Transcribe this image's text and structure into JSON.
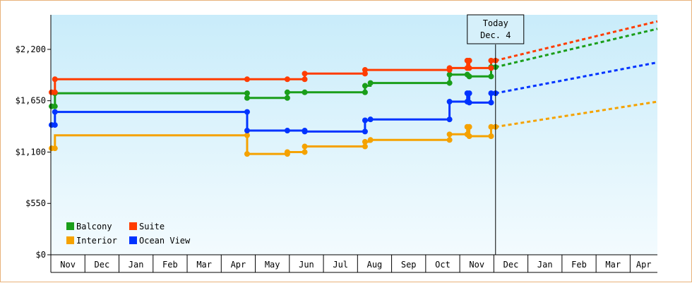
{
  "chart_data": {
    "type": "line",
    "title": "",
    "xlabel": "",
    "ylabel": "",
    "y_ticks": [
      "$0",
      "$550",
      "$1,100",
      "$1,650",
      "$2,200"
    ],
    "y_tick_values": [
      0,
      550,
      1100,
      1650,
      2200
    ],
    "ylim": [
      0,
      2570
    ],
    "x_months": [
      "Nov",
      "Dec",
      "Jan",
      "Feb",
      "Mar",
      "Apr",
      "May",
      "Jun",
      "Jul",
      "Aug",
      "Sep",
      "Oct",
      "Nov",
      "Dec",
      "Jan",
      "Feb",
      "Mar",
      "Apr"
    ],
    "xlim": [
      0,
      17.8
    ],
    "today": {
      "line1": "Today",
      "line2": "Dec. 4",
      "x": 13.05
    },
    "legend_position": "bottom-left",
    "grid": false,
    "series": [
      {
        "name": "Balcony",
        "color": "#1a9e1a",
        "points": [
          [
            0.02,
            1590
          ],
          [
            0.12,
            1590
          ],
          [
            0.12,
            1730
          ],
          [
            5.76,
            1730
          ],
          [
            5.76,
            1680
          ],
          [
            6.94,
            1680
          ],
          [
            6.94,
            1740
          ],
          [
            7.45,
            1740
          ],
          [
            9.22,
            1740
          ],
          [
            9.22,
            1810
          ],
          [
            9.38,
            1810
          ],
          [
            9.38,
            1840
          ],
          [
            11.7,
            1840
          ],
          [
            11.7,
            1930
          ],
          [
            12.22,
            1930
          ],
          [
            12.28,
            1930
          ],
          [
            12.28,
            1910
          ],
          [
            12.92,
            1910
          ],
          [
            12.92,
            2010
          ],
          [
            13.05,
            2010
          ]
        ],
        "markers": [
          [
            0.02,
            1590
          ],
          [
            0.12,
            1590
          ],
          [
            0.12,
            1730
          ],
          [
            5.76,
            1730
          ],
          [
            5.76,
            1680
          ],
          [
            6.94,
            1680
          ],
          [
            6.94,
            1740
          ],
          [
            7.45,
            1740
          ],
          [
            9.22,
            1740
          ],
          [
            9.22,
            1810
          ],
          [
            9.38,
            1840
          ],
          [
            11.7,
            1840
          ],
          [
            11.7,
            1930
          ],
          [
            12.22,
            1930
          ],
          [
            12.28,
            1910
          ],
          [
            12.92,
            1910
          ],
          [
            12.92,
            2010
          ],
          [
            13.05,
            2010
          ]
        ],
        "forecast": [
          [
            13.05,
            2010
          ],
          [
            17.8,
            2420
          ]
        ]
      },
      {
        "name": "Suite",
        "color": "#ff3c00",
        "points": [
          [
            0.02,
            1740
          ],
          [
            0.12,
            1740
          ],
          [
            0.12,
            1880
          ],
          [
            5.76,
            1880
          ],
          [
            6.94,
            1880
          ],
          [
            7.45,
            1880
          ],
          [
            7.45,
            1940
          ],
          [
            9.22,
            1940
          ],
          [
            9.22,
            1980
          ],
          [
            11.7,
            1980
          ],
          [
            11.7,
            2000
          ],
          [
            12.22,
            2000
          ],
          [
            12.22,
            2080
          ],
          [
            12.28,
            2080
          ],
          [
            12.28,
            2000
          ],
          [
            12.92,
            2000
          ],
          [
            12.92,
            2080
          ],
          [
            13.05,
            2080
          ]
        ],
        "markers": [
          [
            0.02,
            1740
          ],
          [
            0.12,
            1740
          ],
          [
            0.12,
            1880
          ],
          [
            5.76,
            1880
          ],
          [
            6.94,
            1880
          ],
          [
            7.45,
            1880
          ],
          [
            7.45,
            1940
          ],
          [
            9.22,
            1940
          ],
          [
            9.22,
            1980
          ],
          [
            11.7,
            1980
          ],
          [
            11.7,
            2000
          ],
          [
            12.22,
            2000
          ],
          [
            12.22,
            2080
          ],
          [
            12.28,
            2080
          ],
          [
            12.28,
            2000
          ],
          [
            12.92,
            2000
          ],
          [
            12.92,
            2080
          ],
          [
            13.05,
            2080
          ]
        ],
        "forecast": [
          [
            13.05,
            2080
          ],
          [
            17.8,
            2500
          ]
        ]
      },
      {
        "name": "Interior",
        "color": "#f5a200",
        "points": [
          [
            0.02,
            1140
          ],
          [
            0.12,
            1140
          ],
          [
            0.12,
            1280
          ],
          [
            5.76,
            1280
          ],
          [
            5.76,
            1080
          ],
          [
            6.94,
            1080
          ],
          [
            6.94,
            1100
          ],
          [
            7.45,
            1100
          ],
          [
            7.45,
            1160
          ],
          [
            9.22,
            1160
          ],
          [
            9.22,
            1210
          ],
          [
            9.38,
            1210
          ],
          [
            9.38,
            1230
          ],
          [
            11.7,
            1230
          ],
          [
            11.7,
            1290
          ],
          [
            12.22,
            1290
          ],
          [
            12.22,
            1370
          ],
          [
            12.28,
            1370
          ],
          [
            12.28,
            1270
          ],
          [
            12.92,
            1270
          ],
          [
            12.92,
            1370
          ],
          [
            13.05,
            1370
          ]
        ],
        "markers": [
          [
            0.02,
            1140
          ],
          [
            0.12,
            1140
          ],
          [
            5.76,
            1280
          ],
          [
            5.76,
            1080
          ],
          [
            6.94,
            1080
          ],
          [
            6.94,
            1100
          ],
          [
            7.45,
            1100
          ],
          [
            7.45,
            1160
          ],
          [
            9.22,
            1160
          ],
          [
            9.22,
            1210
          ],
          [
            9.38,
            1230
          ],
          [
            11.7,
            1230
          ],
          [
            11.7,
            1290
          ],
          [
            12.22,
            1290
          ],
          [
            12.22,
            1370
          ],
          [
            12.28,
            1370
          ],
          [
            12.28,
            1270
          ],
          [
            12.92,
            1270
          ],
          [
            12.92,
            1370
          ],
          [
            13.05,
            1370
          ]
        ],
        "forecast": [
          [
            13.05,
            1370
          ],
          [
            17.8,
            1640
          ]
        ]
      },
      {
        "name": "Ocean View",
        "color": "#0033ff",
        "points": [
          [
            0.02,
            1390
          ],
          [
            0.12,
            1390
          ],
          [
            0.12,
            1530
          ],
          [
            5.76,
            1530
          ],
          [
            5.76,
            1330
          ],
          [
            6.94,
            1330
          ],
          [
            7.45,
            1330
          ],
          [
            7.45,
            1320
          ],
          [
            9.22,
            1320
          ],
          [
            9.22,
            1440
          ],
          [
            9.38,
            1440
          ],
          [
            9.38,
            1450
          ],
          [
            11.7,
            1450
          ],
          [
            11.7,
            1640
          ],
          [
            12.22,
            1640
          ],
          [
            12.22,
            1730
          ],
          [
            12.28,
            1730
          ],
          [
            12.28,
            1630
          ],
          [
            12.92,
            1630
          ],
          [
            12.92,
            1730
          ],
          [
            13.05,
            1730
          ]
        ],
        "markers": [
          [
            0.02,
            1390
          ],
          [
            0.12,
            1390
          ],
          [
            0.12,
            1530
          ],
          [
            5.76,
            1530
          ],
          [
            5.76,
            1330
          ],
          [
            6.94,
            1330
          ],
          [
            7.45,
            1330
          ],
          [
            7.45,
            1320
          ],
          [
            9.22,
            1320
          ],
          [
            9.22,
            1440
          ],
          [
            9.38,
            1450
          ],
          [
            11.7,
            1450
          ],
          [
            11.7,
            1640
          ],
          [
            12.22,
            1640
          ],
          [
            12.22,
            1730
          ],
          [
            12.28,
            1730
          ],
          [
            12.28,
            1630
          ],
          [
            12.92,
            1630
          ],
          [
            12.92,
            1730
          ],
          [
            13.05,
            1730
          ]
        ],
        "forecast": [
          [
            13.05,
            1730
          ],
          [
            17.8,
            2060
          ]
        ]
      }
    ]
  }
}
